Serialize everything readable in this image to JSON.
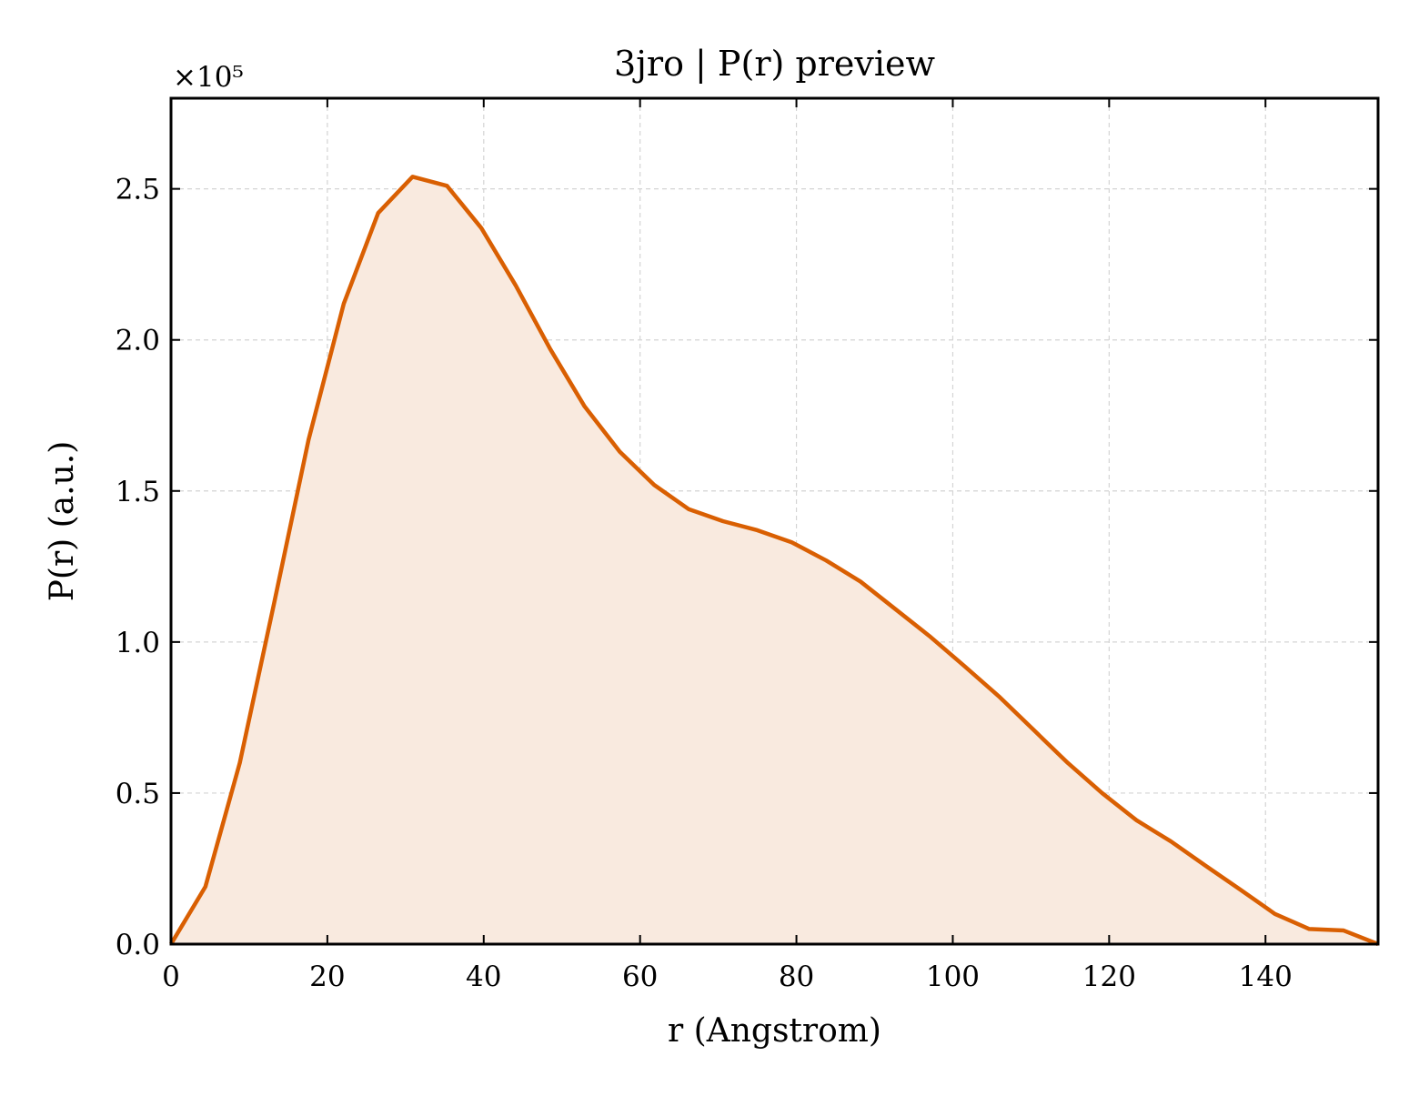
{
  "chart_data": {
    "type": "area",
    "title": "3jro | P(r) preview",
    "xlabel": "r (Angstrom)",
    "ylabel": "P(r) (a.u.)",
    "y_multiplier_label": "×10⁵",
    "xlim": [
      0,
      154.4
    ],
    "ylim": [
      0,
      2.8
    ],
    "xticks": [
      0,
      20,
      40,
      60,
      80,
      100,
      120,
      140
    ],
    "yticks": [
      0.0,
      0.5,
      1.0,
      1.5,
      2.0,
      2.5
    ],
    "xtick_labels": [
      "0",
      "20",
      "40",
      "60",
      "80",
      "100",
      "120",
      "140"
    ],
    "ytick_labels": [
      "0.0",
      "0.5",
      "1.0",
      "1.5",
      "2.0",
      "2.5"
    ],
    "grid": true,
    "line_color": "#d95f02",
    "fill_color": "#f9eadf",
    "series": [
      {
        "x": [
          0,
          4.4,
          8.8,
          13.2,
          17.6,
          22.1,
          26.5,
          30.9,
          35.3,
          39.7,
          44.1,
          48.5,
          52.9,
          57.4,
          61.8,
          66.2,
          70.6,
          75.0,
          79.4,
          83.8,
          88.2,
          92.6,
          97.0,
          101.5,
          105.9,
          110.3,
          114.7,
          119.1,
          123.5,
          127.9,
          132.3,
          136.8,
          141.2,
          145.6,
          150.0,
          154.4
        ],
        "y": [
          0.0,
          0.19,
          0.6,
          1.13,
          1.67,
          2.12,
          2.42,
          2.54,
          2.51,
          2.37,
          2.18,
          1.97,
          1.78,
          1.63,
          1.52,
          1.44,
          1.4,
          1.37,
          1.33,
          1.27,
          1.2,
          1.11,
          1.02,
          0.92,
          0.82,
          0.71,
          0.6,
          0.5,
          0.41,
          0.34,
          0.26,
          0.18,
          0.1,
          0.05,
          0.045,
          0.0
        ]
      }
    ]
  }
}
